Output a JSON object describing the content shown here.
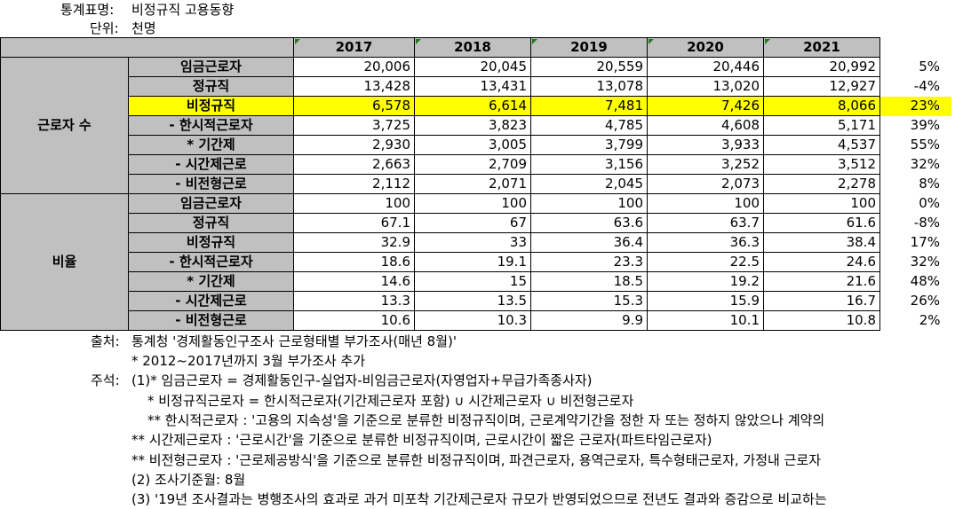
{
  "meta": {
    "title_label": "통계표명:",
    "title_value": "비정규직 고용동향",
    "unit_label": "단위:",
    "unit_value": "천명"
  },
  "table": {
    "years": [
      "2017",
      "2018",
      "2019",
      "2020",
      "2021"
    ],
    "groups": [
      {
        "name": "근로자 수",
        "rows": [
          {
            "label": "임금근로자",
            "values": [
              "20,006",
              "20,045",
              "20,559",
              "20,446",
              "20,992"
            ],
            "change": "5%"
          },
          {
            "label": "정규직",
            "values": [
              "13,428",
              "13,431",
              "13,078",
              "13,020",
              "12,927"
            ],
            "change": "-4%"
          },
          {
            "label": "비정규직",
            "values": [
              "6,578",
              "6,614",
              "7,481",
              "7,426",
              "8,066"
            ],
            "change": "23%",
            "highlight": true
          },
          {
            "label": "- 한시적근로자",
            "values": [
              "3,725",
              "3,823",
              "4,785",
              "4,608",
              "5,171"
            ],
            "change": "39%"
          },
          {
            "label": "* 기간제",
            "values": [
              "2,930",
              "3,005",
              "3,799",
              "3,933",
              "4,537"
            ],
            "change": "55%"
          },
          {
            "label": "- 시간제근로",
            "values": [
              "2,663",
              "2,709",
              "3,156",
              "3,252",
              "3,512"
            ],
            "change": "32%"
          },
          {
            "label": "- 비전형근로",
            "values": [
              "2,112",
              "2,071",
              "2,045",
              "2,073",
              "2,278"
            ],
            "change": "8%"
          }
        ]
      },
      {
        "name": "비율",
        "rows": [
          {
            "label": "임금근로자",
            "values": [
              "100",
              "100",
              "100",
              "100",
              "100"
            ],
            "change": "0%"
          },
          {
            "label": "정규직",
            "values": [
              "67.1",
              "67",
              "63.6",
              "63.7",
              "61.6"
            ],
            "change": "-8%"
          },
          {
            "label": "비정규직",
            "values": [
              "32.9",
              "33",
              "36.4",
              "36.3",
              "38.4"
            ],
            "change": "17%"
          },
          {
            "label": "- 한시적근로자",
            "values": [
              "18.6",
              "19.1",
              "23.3",
              "22.5",
              "24.6"
            ],
            "change": "32%"
          },
          {
            "label": "* 기간제",
            "values": [
              "14.6",
              "15",
              "18.5",
              "19.2",
              "21.6"
            ],
            "change": "48%"
          },
          {
            "label": "- 시간제근로",
            "values": [
              "13.3",
              "13.5",
              "15.3",
              "15.9",
              "16.7"
            ],
            "change": "26%"
          },
          {
            "label": "- 비전형근로",
            "values": [
              "10.6",
              "10.3",
              "9.9",
              "10.1",
              "10.8"
            ],
            "change": "2%"
          }
        ]
      }
    ]
  },
  "notes": {
    "source_label": "출처:",
    "source": "통계청 '경제활동인구조사 근로형태별 부가조사(매년 8월)'",
    "source_sub": "* 2012~2017년까지 3월 부가조사 추가",
    "notes_label": "주석:",
    "lines": [
      "(1)* 임금근로자 = 경제활동인구-실업자-비임금근로자(자영업자+무급가족종사자)",
      "* 비정규직근로자 = 한시적근로자(기간제근로자 포함) ∪ 시간제근로자 ∪ 비전형근로자",
      "** 한시적근로자 : '고용의 지속성'을 기준으로 분류한 비정규직이며, 근로계약기간을 정한 자 또는 정하지 않았으나 계약의",
      "** 시간제근로자 : '근로시간'을 기준으로 분류한 비정규직이며, 근로시간이 짧은 근로자(파트타임근로자)",
      "** 비전형근로자 : '근로제공방식'을 기준으로 분류한 비정규직이며, 파견근로자, 용역근로자, 특수형태근로자,  가정내  근로자",
      "(2) 조사기준월: 8월",
      "(3) '19년 조사결과는 병행조사의 효과로 과거 미포착 기간제근로자 규모가 반영되었으므로 전년도 결과와 증감으로 비교하는"
    ]
  }
}
